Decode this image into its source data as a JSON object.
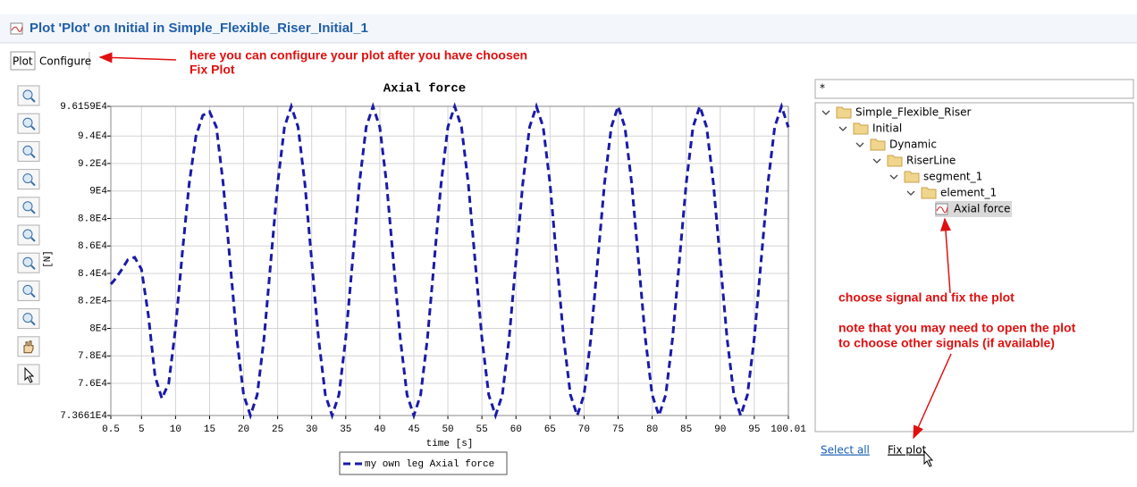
{
  "header": {
    "title": "Plot 'Plot' on Initial in Simple_Flexible_Riser_Initial_1"
  },
  "tabs": [
    "Plot",
    "Configure"
  ],
  "annotations": [
    "here you can configure your plot after you have choosen",
    "Fix Plot",
    "choose signal and fix the plot",
    "note that you may need to open the plot",
    "to choose other signals (if available)"
  ],
  "filter": "*",
  "tree": [
    "Simple_Flexible_Riser",
    "Initial",
    "Dynamic",
    "RiserLine",
    "segment_1",
    "element_1",
    "Axial force"
  ],
  "links": [
    "Select all",
    "Fix plot"
  ],
  "chart_data": {
    "type": "line",
    "title": "Axial force",
    "x_label": "time [s]",
    "y_label": "[N]",
    "x": [
      0.5,
      1,
      2,
      3,
      4,
      5,
      6,
      7,
      8,
      9,
      10,
      11,
      12,
      13,
      14,
      15,
      16,
      17,
      18,
      19,
      20,
      21,
      22,
      23,
      24,
      25,
      26,
      27,
      28,
      29,
      30,
      31,
      32,
      33,
      34,
      35,
      36,
      37,
      38,
      39,
      40,
      41,
      42,
      43,
      44,
      45,
      46,
      47,
      48,
      49,
      50,
      51,
      52,
      53,
      54,
      55,
      56,
      57,
      58,
      59,
      60,
      61,
      62,
      63,
      64,
      65,
      66,
      67,
      68,
      69,
      70,
      71,
      72,
      73,
      74,
      75,
      76,
      77,
      78,
      79,
      80,
      81,
      82,
      83,
      84,
      85,
      86,
      87,
      88,
      89,
      90,
      91,
      92,
      93,
      94,
      95,
      96,
      97,
      98,
      99,
      100,
      100.01
    ],
    "series": [
      {
        "name": "my own leg Axial force",
        "color": "#1a1aa8",
        "values": [
          83220,
          83500,
          84200,
          85000,
          85170,
          84300,
          81000,
          76500,
          74900,
          76000,
          80000,
          85500,
          90500,
          94000,
          95500,
          95770,
          94652,
          90535,
          84910,
          79286,
          75168,
          73661,
          75168,
          79286,
          84910,
          90535,
          94652,
          96159,
          94652,
          90535,
          84910,
          79286,
          75168,
          73661,
          75168,
          79286,
          84910,
          90535,
          94652,
          96159,
          94652,
          90535,
          84910,
          79286,
          75168,
          73661,
          75168,
          79286,
          84910,
          90535,
          94652,
          96159,
          94652,
          90535,
          84910,
          79286,
          75168,
          73661,
          75168,
          79286,
          84910,
          90535,
          94652,
          96159,
          94652,
          90535,
          84910,
          79286,
          75168,
          73661,
          75168,
          79286,
          84910,
          90535,
          94652,
          96159,
          94652,
          90535,
          84910,
          79286,
          75168,
          73661,
          75168,
          79286,
          84910,
          90535,
          94652,
          96159,
          94652,
          90535,
          84910,
          79286,
          75168,
          73661,
          75168,
          79286,
          84910,
          90535,
          94652,
          96159,
          94652,
          94640
        ]
      }
    ],
    "line_style": "dashed",
    "xlim": [
      0.5,
      100.01
    ],
    "xticks": [
      0.5,
      5,
      10,
      15,
      20,
      25,
      30,
      35,
      40,
      45,
      50,
      55,
      60,
      65,
      70,
      75,
      80,
      85,
      90,
      95,
      100.01
    ],
    "ylim": [
      73661,
      96159
    ],
    "yticks": [
      {
        "value": 73661,
        "label": "7.3661E4"
      },
      {
        "value": 76000,
        "label": "7.6E4"
      },
      {
        "value": 78000,
        "label": "7.8E4"
      },
      {
        "value": 80000,
        "label": "8E4"
      },
      {
        "value": 82000,
        "label": "8.2E4"
      },
      {
        "value": 84000,
        "label": "8.4E4"
      },
      {
        "value": 86000,
        "label": "8.6E4"
      },
      {
        "value": 88000,
        "label": "8.8E4"
      },
      {
        "value": 90000,
        "label": "9E4"
      },
      {
        "value": 92000,
        "label": "9.2E4"
      },
      {
        "value": 94000,
        "label": "9.4E4"
      },
      {
        "value": 96159,
        "label": "9.6159E4"
      }
    ],
    "grid": true,
    "legend": "bottom"
  }
}
